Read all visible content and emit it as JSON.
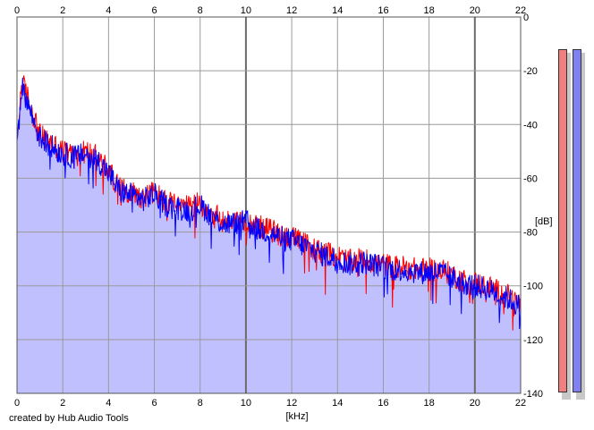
{
  "chart_data": {
    "type": "area",
    "title": "",
    "xlabel": "[kHz]",
    "ylabel": "[dB]",
    "xlim": [
      0,
      22
    ],
    "ylim": [
      -140,
      0
    ],
    "x_ticks": [
      "0",
      "2",
      "4",
      "6",
      "8",
      "10",
      "12",
      "14",
      "16",
      "18",
      "20",
      "22"
    ],
    "y_ticks": [
      "0",
      "-20",
      "-40",
      "-60",
      "-80",
      "-100",
      "-120",
      "-140"
    ],
    "grid": true,
    "legend": "none",
    "fill_color": "#c0c0ff",
    "series": [
      {
        "color": "#ff0000",
        "x": [
          0,
          0.2,
          0.4,
          0.7,
          1.0,
          1.5,
          2.0,
          2.5,
          3.0,
          3.5,
          4.0,
          4.5,
          5.0,
          5.5,
          6.0,
          6.5,
          7.0,
          7.5,
          8.0,
          8.5,
          9.0,
          9.5,
          10.0,
          10.5,
          11.0,
          11.5,
          12.0,
          12.5,
          13.0,
          13.5,
          14.0,
          14.5,
          15.0,
          15.5,
          16.0,
          16.5,
          17.0,
          17.5,
          18.0,
          18.5,
          19.0,
          19.5,
          20.0,
          20.5,
          21.0,
          21.5,
          22.0
        ],
        "y": [
          -48,
          -24,
          -28,
          -36,
          -44,
          -47,
          -50,
          -51,
          -50,
          -52,
          -57,
          -64,
          -65,
          -67,
          -65,
          -69,
          -70,
          -71,
          -69,
          -73,
          -76,
          -76,
          -75,
          -78,
          -79,
          -81,
          -82,
          -84,
          -86,
          -88,
          -89,
          -91,
          -90,
          -91,
          -92,
          -93,
          -93,
          -94,
          -94,
          -94,
          -96,
          -98,
          -99,
          -100,
          -102,
          -104,
          -107
        ]
      },
      {
        "color": "#0000ff",
        "x": [
          0,
          0.2,
          0.4,
          0.7,
          1.0,
          1.5,
          2.0,
          2.5,
          3.0,
          3.5,
          4.0,
          4.5,
          5.0,
          5.5,
          6.0,
          6.5,
          7.0,
          7.5,
          8.0,
          8.5,
          9.0,
          9.5,
          10.0,
          10.5,
          11.0,
          11.5,
          12.0,
          12.5,
          13.0,
          13.5,
          14.0,
          14.5,
          15.0,
          15.5,
          16.0,
          16.5,
          17.0,
          17.5,
          18.0,
          18.5,
          19.0,
          19.5,
          20.0,
          20.5,
          21.0,
          21.5,
          22.0
        ],
        "y": [
          -50,
          -26,
          -30,
          -38,
          -45,
          -48,
          -51,
          -52,
          -51,
          -53,
          -58,
          -65,
          -66,
          -68,
          -66,
          -70,
          -71,
          -72,
          -70,
          -74,
          -77,
          -77,
          -76,
          -79,
          -80,
          -82,
          -83,
          -85,
          -87,
          -89,
          -90,
          -92,
          -91,
          -92,
          -93,
          -94,
          -94,
          -95,
          -95,
          -95,
          -97,
          -99,
          -100,
          -101,
          -103,
          -105,
          -108
        ]
      }
    ],
    "meters": [
      {
        "channel": "left",
        "color": "#f08080",
        "level_db": -140
      },
      {
        "channel": "right",
        "color": "#8080f0",
        "level_db": -140
      }
    ]
  },
  "footer": {
    "credit": "created by Hub Audio Tools"
  }
}
